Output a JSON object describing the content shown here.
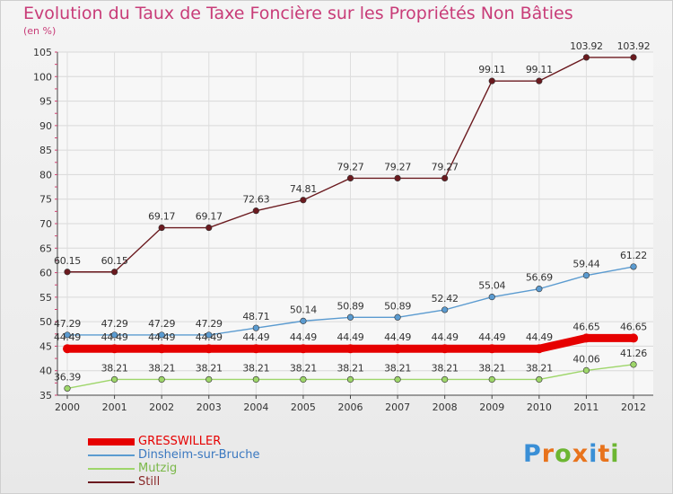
{
  "header": {
    "title": "Evolution du Taux de Taxe Foncière sur les Propriétés Non Bâties",
    "subtitle": "(en %)"
  },
  "logo": {
    "letters": [
      "P",
      "r",
      "o",
      "x",
      "i",
      "t",
      "i"
    ],
    "colors": [
      "#3a8fd6",
      "#e8731c",
      "#6cb632",
      "#e8731c",
      "#3a8fd6",
      "#e8731c",
      "#6cb632"
    ]
  },
  "chart_data": {
    "type": "line",
    "x": [
      "2000",
      "2001",
      "2002",
      "2003",
      "2004",
      "2005",
      "2006",
      "2007",
      "2008",
      "2009",
      "2010",
      "2011",
      "2012"
    ],
    "ylim": [
      35,
      105
    ],
    "yticks": [
      35,
      40,
      45,
      50,
      55,
      60,
      65,
      70,
      75,
      80,
      85,
      90,
      95,
      100,
      105
    ],
    "grid": true,
    "legend_position": "bottom-left",
    "series": [
      {
        "name": "Still",
        "color": "#6b1a1f",
        "values": [
          60.15,
          60.15,
          69.17,
          69.17,
          72.63,
          74.81,
          79.27,
          79.27,
          79.27,
          99.11,
          99.11,
          103.92,
          103.92
        ],
        "labels": [
          "60.15",
          "60.15",
          "69.17",
          "69.17",
          "72.63",
          "74.81",
          "79.27",
          "79.27",
          "79.27",
          "99.11",
          "99.11",
          "103.92",
          "103.92"
        ]
      },
      {
        "name": "Dinsheim-sur-Bruche",
        "color": "#5b9bd0",
        "values": [
          47.29,
          47.29,
          47.29,
          47.29,
          48.71,
          50.14,
          50.89,
          50.89,
          52.42,
          55.04,
          56.69,
          59.44,
          61.22
        ],
        "labels": [
          "47.29",
          "47.29",
          "47.29",
          "47.29",
          "48.71",
          "50.14",
          "50.89",
          "50.89",
          "52.42",
          "55.04",
          "56.69",
          "59.44",
          "61.22"
        ]
      },
      {
        "name": "GRESSWILLER",
        "color": "#e60000",
        "values": [
          44.49,
          44.49,
          44.49,
          44.49,
          44.49,
          44.49,
          44.49,
          44.49,
          44.49,
          44.49,
          44.49,
          46.65,
          46.65
        ],
        "labels": [
          "44.49",
          "44.49",
          "44.49",
          "44.49",
          "44.49",
          "44.49",
          "44.49",
          "44.49",
          "44.49",
          "44.49",
          "44.49",
          "46.65",
          "46.65"
        ]
      },
      {
        "name": "Mutzig",
        "color": "#9ed66a",
        "values": [
          36.39,
          38.21,
          38.21,
          38.21,
          38.21,
          38.21,
          38.21,
          38.21,
          38.21,
          38.21,
          38.21,
          40.06,
          41.26
        ],
        "labels": [
          "36.39",
          "38.21",
          "38.21",
          "38.21",
          "38.21",
          "38.21",
          "38.21",
          "38.21",
          "38.21",
          "38.21",
          "38.21",
          "40.06",
          "41.26"
        ]
      }
    ],
    "legend": [
      {
        "name": "GRESSWILLER",
        "color": "#e60000",
        "text_color": "#e60000",
        "thick": true
      },
      {
        "name": "Dinsheim-sur-Bruche",
        "color": "#5b9bd0",
        "text_color": "#3a78c0",
        "thick": false
      },
      {
        "name": "Mutzig",
        "color": "#9ed66a",
        "text_color": "#7ab848",
        "thick": false
      },
      {
        "name": "Still",
        "color": "#6b1a1f",
        "text_color": "#8a2a2a",
        "thick": false
      }
    ]
  }
}
